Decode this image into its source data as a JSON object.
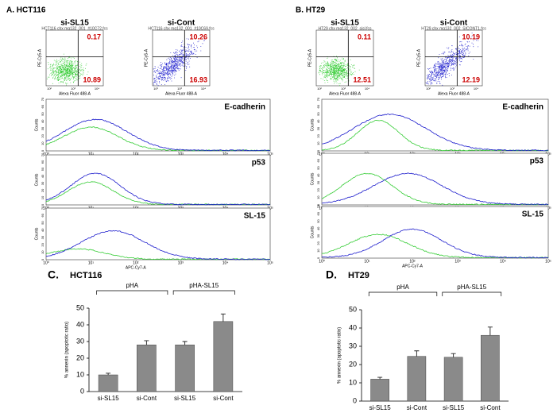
{
  "panels": [
    {
      "label": "A. HCT116",
      "scatter": [
        {
          "title": "si-SL15",
          "file": "HCT116 chx mg132_001_#10C72.fcs",
          "upper_right": 0.17,
          "lower_right": 10.89
        },
        {
          "title": "si-Cont",
          "file": "HCT116 chx mg132_001_#10C69.fcs",
          "upper_right": 10.26,
          "lower_right": 16.93
        }
      ],
      "histograms": [
        {
          "marker": "E-cadherin",
          "xlabel": "PE-A"
        },
        {
          "marker": "p53",
          "xlabel": "APC-A"
        },
        {
          "marker": "SL-15",
          "xlabel": "APC-Cy7-A"
        }
      ]
    },
    {
      "label": "B. HT29",
      "scatter": [
        {
          "title": "si-SL15",
          "file": "HT29 chx mg132_002_sisl.fcs",
          "upper_right": 0.11,
          "lower_right": 12.51
        },
        {
          "title": "si-Cont",
          "file": "HT29 chx mg132_002_SICONT1.fcs",
          "upper_right": 10.19,
          "lower_right": 12.19
        }
      ],
      "histograms": [
        {
          "marker": "E-cadherin",
          "xlabel": "PE-A"
        },
        {
          "marker": "p53",
          "xlabel": "APC-A"
        },
        {
          "marker": "SL-15",
          "xlabel": "APC-Cy7-A"
        }
      ]
    }
  ],
  "flow_axes": {
    "scatter_xlabel": "Alexa Fluor 488-A",
    "scatter_ylabel": "PE-Cy5-A",
    "hist_ylabel": "Counts",
    "xticks": [
      "10⁰",
      "10¹",
      "10²",
      "10³",
      "10⁴",
      "10⁵"
    ],
    "hist_yticks": [
      0,
      10,
      20,
      30,
      40,
      50,
      60,
      70
    ]
  },
  "chart_data": [
    {
      "type": "bar",
      "panel": "C.",
      "title": "HCT116",
      "ylabel": "% annexin (apoptotic ratio)",
      "group_labels": [
        "pHA",
        "pHA-SL15"
      ],
      "categories": [
        "si-SL15",
        "si-Cont",
        "si-SL15",
        "si-Cont"
      ],
      "values": [
        10,
        28,
        28,
        42
      ],
      "errors": [
        1,
        2.5,
        2,
        4.5
      ],
      "color": "#8a8a8a",
      "ylim": [
        0,
        50
      ],
      "yticks": [
        0,
        10,
        20,
        30,
        40,
        50
      ]
    },
    {
      "type": "bar",
      "panel": "D.",
      "title": "HT29",
      "ylabel": "% annexin (apoptotic ratio)",
      "group_labels": [
        "pHA",
        "pHA-SL15"
      ],
      "categories": [
        "si-SL15",
        "si-Cont",
        "si-SL15",
        "si-Cont"
      ],
      "values": [
        12,
        24.5,
        24,
        36
      ],
      "errors": [
        1,
        3,
        2,
        4.5
      ],
      "color": "#8a8a8a",
      "ylim": [
        0,
        50
      ],
      "yticks": [
        0,
        10,
        20,
        30,
        40,
        50
      ]
    }
  ]
}
